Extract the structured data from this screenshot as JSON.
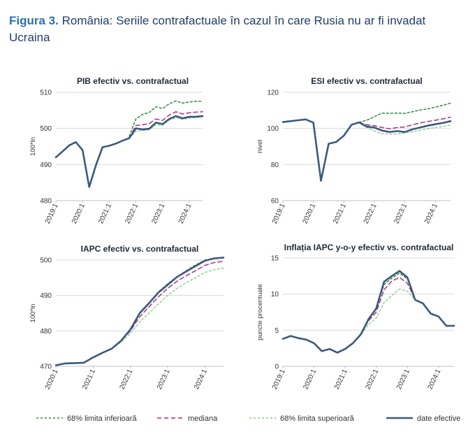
{
  "title": {
    "prefix": "Figura 3.",
    "text": "România: Seriile contrafactuale în cazul în care Rusia nu ar fi invadat Ucraina"
  },
  "colors": {
    "actual": "#3b5a7d",
    "median": "#a4347e",
    "lower": "#2e8b3f",
    "upper": "#88c983",
    "grid": "#d9d9d9",
    "title": "#2b6fb5"
  },
  "legend": [
    {
      "key": "lower",
      "label": "68% limita inferioară"
    },
    {
      "key": "median",
      "label": "mediana"
    },
    {
      "key": "upper",
      "label": "68% limita superioară"
    },
    {
      "key": "actual",
      "label": "date efective"
    }
  ],
  "chart_data": [
    {
      "type": "line",
      "title": "PIB efectiv vs. contrafactual",
      "ylabel": "100*ln",
      "ylim": [
        480,
        510
      ],
      "yticks": [
        480,
        490,
        500,
        510
      ],
      "x_start": 2019.0,
      "x_end": 2024.5,
      "xticks": [
        {
          "x": 2019.0,
          "label": "2019:1"
        },
        {
          "x": 2020.0,
          "label": "2020:1"
        },
        {
          "x": 2021.0,
          "label": "2021:1"
        },
        {
          "x": 2022.0,
          "label": "2022:1"
        },
        {
          "x": 2023.0,
          "label": "2023:1"
        },
        {
          "x": 2024.0,
          "label": "2024:1"
        }
      ],
      "series": [
        {
          "key": "actual",
          "name": "date efective",
          "x": [
            2019.0,
            2019.25,
            2019.5,
            2019.75,
            2020.0,
            2020.25,
            2020.5,
            2020.75,
            2021.0,
            2021.25,
            2021.5,
            2021.75,
            2022.0,
            2022.25,
            2022.5,
            2022.75,
            2023.0,
            2023.25,
            2023.5,
            2023.75,
            2024.0,
            2024.25,
            2024.5
          ],
          "values": [
            492,
            493.6,
            495.3,
            496.2,
            494,
            483.8,
            489.8,
            494.8,
            495.2,
            495.8,
            496.6,
            497.3,
            500,
            499.7,
            499.9,
            501.6,
            501.2,
            502.6,
            503.4,
            502.8,
            503.2,
            503.2,
            503.4
          ]
        },
        {
          "key": "median",
          "name": "mediana",
          "x": [
            2021.75,
            2022.0,
            2022.25,
            2022.5,
            2022.75,
            2023.0,
            2023.25,
            2023.5,
            2023.75,
            2024.0,
            2024.25,
            2024.5
          ],
          "values": [
            497.3,
            500.8,
            501.0,
            501.3,
            502.6,
            502.2,
            503.7,
            504.6,
            504.0,
            504.3,
            504.5,
            504.6
          ]
        },
        {
          "key": "lower",
          "name": "68% limita inferioară",
          "x": [
            2021.75,
            2022.0,
            2022.25,
            2022.5,
            2022.75,
            2023.0,
            2023.25,
            2023.5,
            2023.75,
            2024.0,
            2024.25,
            2024.5
          ],
          "values": [
            497.8,
            502.6,
            503.9,
            504.4,
            506.0,
            505.5,
            506.8,
            507.6,
            507.0,
            507.3,
            507.5,
            507.5
          ]
        },
        {
          "key": "upper",
          "name": "68% limita superioară",
          "x": [
            2021.75,
            2022.0,
            2022.25,
            2022.5,
            2022.75,
            2023.0,
            2023.25,
            2023.5,
            2023.75,
            2024.0,
            2024.25,
            2024.5
          ],
          "values": [
            497.3,
            499.2,
            499.4,
            499.6,
            501.0,
            500.8,
            502.3,
            503.0,
            502.5,
            502.9,
            503.0,
            503.2
          ]
        }
      ]
    },
    {
      "type": "line",
      "title": "ESI efectiv vs. contrafactual",
      "ylabel": "nivel",
      "ylim": [
        60,
        120
      ],
      "yticks": [
        60,
        80,
        100,
        120
      ],
      "x_start": 2019.0,
      "x_end": 2024.5,
      "xticks": [
        {
          "x": 2019.0,
          "label": "2019:1"
        },
        {
          "x": 2020.0,
          "label": "2020:1"
        },
        {
          "x": 2021.0,
          "label": "2021:1"
        },
        {
          "x": 2022.0,
          "label": "2022:1"
        },
        {
          "x": 2023.0,
          "label": "2023:1"
        },
        {
          "x": 2024.0,
          "label": "2024:1"
        }
      ],
      "series": [
        {
          "key": "actual",
          "name": "date efective",
          "x": [
            2019.0,
            2019.25,
            2019.5,
            2019.75,
            2020.0,
            2020.25,
            2020.5,
            2020.75,
            2021.0,
            2021.25,
            2021.5,
            2021.75,
            2022.0,
            2022.25,
            2022.5,
            2022.75,
            2023.0,
            2023.25,
            2023.5,
            2023.75,
            2024.0,
            2024.25,
            2024.5
          ],
          "values": [
            103.5,
            104.0,
            104.5,
            105.0,
            103.2,
            71.0,
            91.5,
            92.5,
            96.0,
            102.0,
            103.3,
            101.0,
            100.5,
            98.8,
            98.0,
            98.5,
            98.0,
            99.5,
            100.5,
            101.5,
            102.3,
            103.0,
            104.0
          ]
        },
        {
          "key": "median",
          "name": "mediana",
          "x": [
            2021.5,
            2021.75,
            2022.0,
            2022.25,
            2022.5,
            2022.75,
            2023.0,
            2023.25,
            2023.5,
            2023.75,
            2024.0,
            2024.25,
            2024.5
          ],
          "values": [
            103.3,
            102.0,
            101.5,
            100.5,
            99.8,
            100.5,
            100.8,
            102.0,
            103.0,
            103.8,
            104.5,
            105.3,
            106.2
          ]
        },
        {
          "key": "lower",
          "name": "68% limita inferioară",
          "x": [
            2021.5,
            2021.75,
            2022.0,
            2022.25,
            2022.5,
            2022.75,
            2023.0,
            2023.25,
            2023.5,
            2023.75,
            2024.0,
            2024.25,
            2024.5
          ],
          "values": [
            103.3,
            104.5,
            106.5,
            108.5,
            108.3,
            108.5,
            108.3,
            109.2,
            110.2,
            110.8,
            111.8,
            112.8,
            114.0
          ]
        },
        {
          "key": "upper",
          "name": "68% limita superioară",
          "x": [
            2021.5,
            2021.75,
            2022.0,
            2022.25,
            2022.5,
            2022.75,
            2023.0,
            2023.25,
            2023.5,
            2023.75,
            2024.0,
            2024.25,
            2024.5
          ],
          "values": [
            103.3,
            100.5,
            98.5,
            97.0,
            96.8,
            97.0,
            97.3,
            98.2,
            99.0,
            99.8,
            100.5,
            101.0,
            101.8
          ]
        }
      ]
    },
    {
      "type": "line",
      "title": "IAPC efectiv vs. contrafactual",
      "ylabel": "100*ln",
      "ylim": [
        470,
        500
      ],
      "yticks": [
        470,
        480,
        490,
        500
      ],
      "x_start": 2020.0,
      "x_end": 2024.5,
      "xticks": [
        {
          "x": 2020.0,
          "label": "2020:1"
        },
        {
          "x": 2021.0,
          "label": "2021:1"
        },
        {
          "x": 2022.0,
          "label": "2022:1"
        },
        {
          "x": 2023.0,
          "label": "2023:1"
        },
        {
          "x": 2024.0,
          "label": "2024:1"
        }
      ],
      "series": [
        {
          "key": "actual",
          "name": "date efective",
          "x": [
            2020.0,
            2020.25,
            2020.5,
            2020.75,
            2021.0,
            2021.25,
            2021.5,
            2021.75,
            2022.0,
            2022.25,
            2022.5,
            2022.75,
            2023.0,
            2023.25,
            2023.5,
            2023.75,
            2024.0,
            2024.25,
            2024.5
          ],
          "values": [
            470.3,
            470.8,
            470.9,
            471.0,
            472.5,
            473.8,
            475.0,
            477.2,
            480.4,
            485.0,
            487.8,
            490.8,
            493.0,
            495.2,
            496.8,
            498.3,
            499.8,
            500.5,
            500.7
          ]
        },
        {
          "key": "median",
          "name": "mediana",
          "x": [
            2021.5,
            2021.75,
            2022.0,
            2022.25,
            2022.5,
            2022.75,
            2023.0,
            2023.25,
            2023.5,
            2023.75,
            2024.0,
            2024.25,
            2024.5
          ],
          "values": [
            475.0,
            477.2,
            480.0,
            484.0,
            486.8,
            489.6,
            492.0,
            494.0,
            495.6,
            497.0,
            498.5,
            499.3,
            499.6
          ]
        },
        {
          "key": "lower",
          "name": "68% limita inferioară",
          "x": [
            2021.5,
            2021.75,
            2022.0,
            2022.25,
            2022.5,
            2022.75,
            2023.0,
            2023.25,
            2023.5,
            2023.75,
            2024.0,
            2024.25,
            2024.5
          ],
          "values": [
            475.0,
            477.3,
            480.5,
            485.2,
            488.0,
            491.0,
            493.3,
            495.3,
            497.0,
            498.6,
            500.0,
            500.4,
            500.6
          ]
        },
        {
          "key": "upper",
          "name": "68% limita superioară",
          "x": [
            2021.5,
            2021.75,
            2022.0,
            2022.25,
            2022.5,
            2022.75,
            2023.0,
            2023.25,
            2023.5,
            2023.75,
            2024.0,
            2024.25,
            2024.5
          ],
          "values": [
            475.0,
            476.8,
            479.3,
            482.5,
            485.0,
            487.6,
            490.0,
            492.0,
            493.6,
            495.0,
            496.5,
            497.3,
            497.7
          ]
        }
      ]
    },
    {
      "type": "line",
      "title": "Inflația IAPC y-o-y efectiv vs. contrafactual",
      "ylabel": "puncte procentuale",
      "ylim": [
        0,
        15
      ],
      "yticks": [
        0,
        5,
        10,
        15
      ],
      "x_start": 2019.0,
      "x_end": 2024.5,
      "xticks": [
        {
          "x": 2019.0,
          "label": "2019:1"
        },
        {
          "x": 2020.0,
          "label": "2020:1"
        },
        {
          "x": 2021.0,
          "label": "2021:1"
        },
        {
          "x": 2022.0,
          "label": "2022:1"
        },
        {
          "x": 2023.0,
          "label": "2023:1"
        },
        {
          "x": 2024.0,
          "label": "2024:1"
        }
      ],
      "series": [
        {
          "key": "actual",
          "name": "date efective",
          "x": [
            2019.0,
            2019.25,
            2019.5,
            2019.75,
            2020.0,
            2020.25,
            2020.5,
            2020.75,
            2021.0,
            2021.25,
            2021.5,
            2021.75,
            2022.0,
            2022.25,
            2022.5,
            2022.75,
            2023.0,
            2023.25,
            2023.5,
            2023.75,
            2024.0,
            2024.25,
            2024.5
          ],
          "values": [
            3.8,
            4.2,
            3.9,
            3.7,
            3.2,
            2.1,
            2.4,
            1.9,
            2.4,
            3.2,
            4.4,
            6.5,
            8.0,
            11.7,
            12.5,
            13.2,
            12.3,
            9.2,
            8.7,
            7.3,
            6.9,
            5.6,
            5.6
          ]
        },
        {
          "key": "median",
          "name": "mediana",
          "x": [
            2021.25,
            2021.5,
            2021.75,
            2022.0,
            2022.25,
            2022.5,
            2022.75,
            2023.0,
            2023.25
          ],
          "values": [
            3.2,
            4.4,
            6.3,
            7.5,
            10.6,
            11.8,
            12.3,
            11.5,
            9.2
          ]
        },
        {
          "key": "lower",
          "name": "68% limita inferioară",
          "x": [
            2021.25,
            2021.5,
            2021.75,
            2022.0,
            2022.25,
            2022.5,
            2022.75,
            2023.0,
            2023.25
          ],
          "values": [
            3.2,
            4.4,
            6.6,
            8.0,
            11.3,
            12.2,
            12.9,
            12.1,
            9.2
          ]
        },
        {
          "key": "upper",
          "name": "68% limita superioară",
          "x": [
            2021.25,
            2021.5,
            2021.75,
            2022.0,
            2022.25,
            2022.5,
            2022.75,
            2023.0,
            2023.25
          ],
          "values": [
            3.2,
            4.3,
            5.8,
            6.7,
            8.8,
            9.8,
            10.7,
            10.4,
            9.2
          ]
        }
      ]
    }
  ]
}
